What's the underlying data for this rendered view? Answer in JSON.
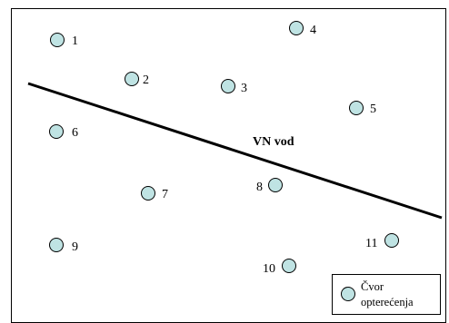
{
  "diagram": {
    "node_color": "#bfe3e3",
    "line_color": "#000000",
    "line_label": "VN vod",
    "legend": {
      "line1": "Čvor",
      "line2": "opterećenja"
    },
    "nodes": [
      {
        "id": "1",
        "label": "1"
      },
      {
        "id": "2",
        "label": "2"
      },
      {
        "id": "3",
        "label": "3"
      },
      {
        "id": "4",
        "label": "4"
      },
      {
        "id": "5",
        "label": "5"
      },
      {
        "id": "6",
        "label": "6"
      },
      {
        "id": "7",
        "label": "7"
      },
      {
        "id": "8",
        "label": "8"
      },
      {
        "id": "9",
        "label": "9"
      },
      {
        "id": "10",
        "label": "10"
      },
      {
        "id": "11",
        "label": "11"
      }
    ]
  }
}
